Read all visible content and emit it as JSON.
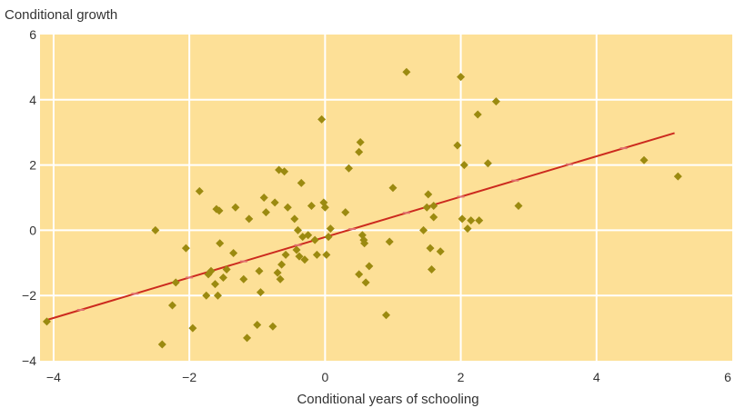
{
  "chart_data": {
    "type": "scatter",
    "title": "",
    "ylabel": "Conditional growth",
    "xlabel": "Conditional years of schooling",
    "xlim": [
      -4.2,
      6
    ],
    "ylim": [
      -4,
      6
    ],
    "x_ticks": [
      -4,
      -2,
      0,
      2,
      4,
      6
    ],
    "x_tick_labels": [
      "−4",
      "−2",
      "0",
      "2",
      "4",
      "6"
    ],
    "y_ticks": [
      -4,
      -2,
      0,
      2,
      4,
      6
    ],
    "y_tick_labels": [
      "−4",
      "−2",
      "0",
      "2",
      "4",
      "6"
    ],
    "grid": true,
    "colors": {
      "plot_background": "#fde097",
      "grid": "#ffffff",
      "points": "#9b8a10",
      "fit_line": "#cc2a1e",
      "text": "#333333"
    },
    "points": [
      [
        -4.1,
        -2.8
      ],
      [
        -2.5,
        0.0
      ],
      [
        -2.4,
        -3.5
      ],
      [
        -2.25,
        -2.3
      ],
      [
        -2.2,
        -1.6
      ],
      [
        -2.05,
        -0.55
      ],
      [
        -1.95,
        -3.0
      ],
      [
        -1.85,
        1.2
      ],
      [
        -1.75,
        -2.0
      ],
      [
        -1.72,
        -1.35
      ],
      [
        -1.68,
        -1.25
      ],
      [
        -1.62,
        -1.65
      ],
      [
        -1.6,
        0.65
      ],
      [
        -1.58,
        -2.0
      ],
      [
        -1.56,
        0.6
      ],
      [
        -1.55,
        -0.4
      ],
      [
        -1.5,
        -1.45
      ],
      [
        -1.45,
        -1.2
      ],
      [
        -1.35,
        -0.7
      ],
      [
        -1.32,
        0.7
      ],
      [
        -1.2,
        -1.5
      ],
      [
        -1.15,
        -3.3
      ],
      [
        -1.12,
        0.35
      ],
      [
        -1.0,
        -2.9
      ],
      [
        -0.97,
        -1.25
      ],
      [
        -0.95,
        -1.9
      ],
      [
        -0.9,
        1.0
      ],
      [
        -0.87,
        0.55
      ],
      [
        -0.77,
        -2.95
      ],
      [
        -0.74,
        0.85
      ],
      [
        -0.7,
        -1.3
      ],
      [
        -0.68,
        1.85
      ],
      [
        -0.66,
        -1.5
      ],
      [
        -0.64,
        -1.05
      ],
      [
        -0.6,
        1.8
      ],
      [
        -0.58,
        -0.75
      ],
      [
        -0.55,
        0.7
      ],
      [
        -0.45,
        0.35
      ],
      [
        -0.42,
        -0.6
      ],
      [
        -0.4,
        0.0
      ],
      [
        -0.38,
        -0.8
      ],
      [
        -0.35,
        1.45
      ],
      [
        -0.33,
        -0.2
      ],
      [
        -0.3,
        -0.9
      ],
      [
        -0.25,
        -0.15
      ],
      [
        -0.2,
        0.75
      ],
      [
        -0.15,
        -0.3
      ],
      [
        -0.12,
        -0.75
      ],
      [
        -0.05,
        3.4
      ],
      [
        -0.02,
        0.85
      ],
      [
        0.0,
        0.7
      ],
      [
        0.02,
        -0.75
      ],
      [
        0.05,
        -0.2
      ],
      [
        0.08,
        0.05
      ],
      [
        0.3,
        0.55
      ],
      [
        0.35,
        1.9
      ],
      [
        0.5,
        -1.35
      ],
      [
        0.5,
        2.4
      ],
      [
        0.52,
        2.7
      ],
      [
        0.55,
        -0.15
      ],
      [
        0.57,
        -0.3
      ],
      [
        0.58,
        -0.4
      ],
      [
        0.6,
        -1.6
      ],
      [
        0.65,
        -1.1
      ],
      [
        0.9,
        -2.6
      ],
      [
        0.95,
        -0.35
      ],
      [
        1.0,
        1.3
      ],
      [
        1.2,
        4.85
      ],
      [
        1.45,
        0.0
      ],
      [
        1.5,
        0.7
      ],
      [
        1.52,
        1.1
      ],
      [
        1.55,
        -0.55
      ],
      [
        1.57,
        -1.2
      ],
      [
        1.6,
        0.75
      ],
      [
        1.6,
        0.4
      ],
      [
        1.7,
        -0.65
      ],
      [
        1.95,
        2.6
      ],
      [
        2.0,
        4.7
      ],
      [
        2.02,
        0.35
      ],
      [
        2.05,
        2.0
      ],
      [
        2.1,
        0.05
      ],
      [
        2.15,
        0.3
      ],
      [
        2.25,
        3.55
      ],
      [
        2.27,
        0.3
      ],
      [
        2.4,
        2.05
      ],
      [
        2.52,
        3.95
      ],
      [
        2.85,
        0.75
      ],
      [
        4.7,
        2.15
      ],
      [
        5.2,
        1.65
      ]
    ],
    "fit_line": {
      "x": [
        -4.1,
        5.15
      ],
      "y": [
        -2.75,
        2.98
      ]
    }
  }
}
